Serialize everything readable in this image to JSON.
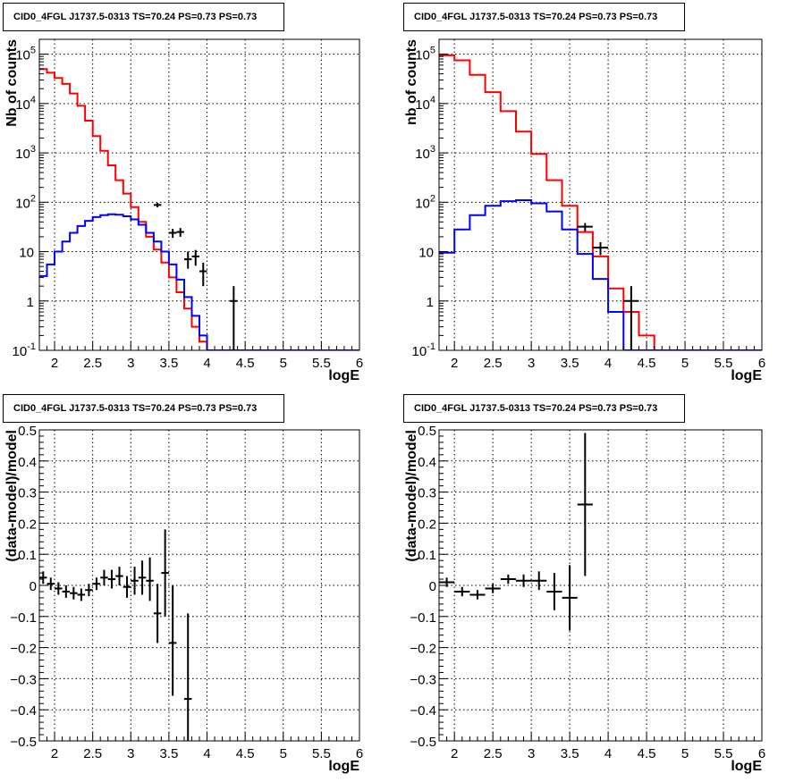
{
  "colors": {
    "data": "#000000",
    "model_total": "#ff0000",
    "model_source": "#0000ff",
    "grid": "#000000"
  },
  "chart_data": [
    {
      "type": "line",
      "scale": "log",
      "title": "CID0_4FGL J1737.5-0313 TS=70.24 PS=0.73 PS=0.73",
      "xlabel": "logE",
      "ylabel": "Nb of counts",
      "xlim": [
        1.8,
        6.0
      ],
      "ylim": [
        0.1,
        200000
      ],
      "xticks": [
        "2",
        "2.5",
        "3",
        "3.5",
        "4",
        "4.5",
        "5",
        "5.5",
        "6"
      ],
      "yticks": [
        "10^-1",
        "1",
        "10",
        "10^2",
        "10^3",
        "10^4",
        "10^5"
      ],
      "grid": true,
      "bin_edges": [
        1.8,
        1.9,
        2.0,
        2.1,
        2.2,
        2.3,
        2.4,
        2.5,
        2.6,
        2.7,
        2.8,
        2.9,
        3.0,
        3.1,
        3.2,
        3.3,
        3.4,
        3.5,
        3.6,
        3.7,
        3.8,
        3.9,
        4.0,
        4.1,
        4.2,
        4.3,
        4.4,
        4.5,
        4.6,
        4.7,
        4.8,
        4.9,
        5.0,
        5.1,
        5.2,
        5.3,
        5.4,
        5.5,
        5.6,
        5.7,
        5.8,
        5.9,
        6.0
      ],
      "series": [
        {
          "role": "model_total",
          "values": [
            50000,
            42000,
            33000,
            25000,
            16000,
            9000,
            4500,
            2200,
            1100,
            560,
            280,
            150,
            80,
            40,
            20,
            11,
            6,
            3,
            1.5,
            0.7,
            0.3,
            0.15,
            0.1,
            0.1,
            0.1,
            0.1,
            0.1,
            0.1,
            0.1,
            0.1,
            0.1,
            0.1,
            0.1,
            0.1,
            0.1,
            0.1,
            0.1,
            0.1,
            0.1,
            0.1,
            0.1,
            0.1
          ]
        },
        {
          "role": "model_source",
          "values": [
            3.2,
            5.5,
            10,
            16,
            24,
            33,
            42,
            50,
            55,
            57,
            56,
            52,
            45,
            35,
            24,
            16,
            10,
            5.5,
            2.7,
            1.2,
            0.5,
            0.2,
            0.1,
            0.1,
            0.1,
            0.1,
            0.1,
            0.1,
            0.1,
            0.1,
            0.1,
            0.1,
            0.1,
            0.1,
            0.1,
            0.1,
            0.1,
            0.1,
            0.1,
            0.1,
            0.1,
            0.1
          ]
        },
        {
          "role": "data",
          "points": [
            {
              "x": 3.35,
              "y": 88,
              "xerr": 0.05,
              "ylo": 79,
              "yhi": 97
            },
            {
              "x": 3.55,
              "y": 24,
              "xerr": 0.05,
              "ylo": 19,
              "yhi": 29
            },
            {
              "x": 3.65,
              "y": 25,
              "xerr": 0.05,
              "ylo": 20,
              "yhi": 30
            },
            {
              "x": 3.75,
              "y": 7,
              "xerr": 0.05,
              "ylo": 4.5,
              "yhi": 10
            },
            {
              "x": 3.85,
              "y": 8,
              "xerr": 0.05,
              "ylo": 5.2,
              "yhi": 10.8
            },
            {
              "x": 3.95,
              "y": 4,
              "xerr": 0.05,
              "ylo": 2,
              "yhi": 6
            },
            {
              "x": 4.35,
              "y": 1,
              "xerr": 0.05,
              "ylo": 0.1,
              "yhi": 2
            }
          ]
        }
      ]
    },
    {
      "type": "line",
      "scale": "log",
      "title": "CID0_4FGL J1737.5-0313 TS=70.24 PS=0.73 PS=0.73",
      "xlabel": "logE",
      "ylabel": "nb of counts",
      "xlim": [
        1.8,
        6.0
      ],
      "ylim": [
        0.1,
        200000
      ],
      "xticks": [
        "2",
        "2.5",
        "3",
        "3.5",
        "4",
        "4.5",
        "5",
        "5.5",
        "6"
      ],
      "yticks": [
        "10^-1",
        "1",
        "10",
        "10^2",
        "10^3",
        "10^4",
        "10^5"
      ],
      "grid": true,
      "bin_edges": [
        1.8,
        2.0,
        2.2,
        2.4,
        2.6,
        2.8,
        3.0,
        3.2,
        3.4,
        3.6,
        3.8,
        4.0,
        4.2,
        4.4,
        4.6,
        4.8,
        5.0,
        5.2,
        5.4,
        5.6,
        5.8,
        6.0
      ],
      "series": [
        {
          "role": "model_total",
          "values": [
            95000,
            75000,
            38000,
            17000,
            7000,
            2700,
            950,
            280,
            85,
            25,
            8,
            1.8,
            0.6,
            0.2,
            0.1,
            0.1,
            0.1,
            0.1,
            0.1,
            0.1,
            0.1
          ]
        },
        {
          "role": "model_source",
          "values": [
            9.5,
            28,
            55,
            85,
            105,
            110,
            95,
            65,
            28,
            9,
            2.8,
            0.6,
            0.1,
            0.1,
            0.1,
            0.1,
            0.1,
            0.1,
            0.1,
            0.1,
            0.1
          ]
        },
        {
          "role": "data",
          "points": [
            {
              "x": 3.7,
              "y": 32,
              "xerr": 0.1,
              "ylo": 26,
              "yhi": 38
            },
            {
              "x": 3.9,
              "y": 12,
              "xerr": 0.1,
              "ylo": 8.5,
              "yhi": 15.5
            },
            {
              "x": 4.3,
              "y": 1,
              "xerr": 0.1,
              "ylo": 0.1,
              "yhi": 2
            }
          ]
        }
      ]
    },
    {
      "type": "scatter",
      "scale": "linear",
      "title": "CID0_4FGL J1737.5-0313 TS=70.24 PS=0.73 PS=0.73",
      "xlabel": "logE",
      "ylabel": "(data-model)/model",
      "xlim": [
        1.8,
        6.0
      ],
      "ylim": [
        -0.5,
        0.5
      ],
      "xticks": [
        "2",
        "2.5",
        "3",
        "3.5",
        "4",
        "4.5",
        "5",
        "5.5",
        "6"
      ],
      "yticks": [
        "-0.5",
        "-0.4",
        "-0.3",
        "-0.2",
        "-0.1",
        "0",
        "0.1",
        "0.2",
        "0.3",
        "0.4",
        "0.5"
      ],
      "grid": true,
      "series": [
        {
          "role": "data",
          "points": [
            {
              "x": 1.85,
              "y": 0.025,
              "xerr": 0.05,
              "ylo": 0.005,
              "yhi": 0.045
            },
            {
              "x": 1.95,
              "y": 0.005,
              "xerr": 0.05,
              "ylo": -0.015,
              "yhi": 0.025
            },
            {
              "x": 2.05,
              "y": -0.01,
              "xerr": 0.05,
              "ylo": -0.03,
              "yhi": 0.01
            },
            {
              "x": 2.15,
              "y": -0.02,
              "xerr": 0.05,
              "ylo": -0.04,
              "yhi": 0.0
            },
            {
              "x": 2.25,
              "y": -0.025,
              "xerr": 0.05,
              "ylo": -0.045,
              "yhi": -0.005
            },
            {
              "x": 2.35,
              "y": -0.03,
              "xerr": 0.05,
              "ylo": -0.05,
              "yhi": -0.01
            },
            {
              "x": 2.45,
              "y": -0.015,
              "xerr": 0.05,
              "ylo": -0.035,
              "yhi": 0.005
            },
            {
              "x": 2.55,
              "y": 0.005,
              "xerr": 0.05,
              "ylo": -0.015,
              "yhi": 0.025
            },
            {
              "x": 2.65,
              "y": 0.025,
              "xerr": 0.05,
              "ylo": 0.0,
              "yhi": 0.05
            },
            {
              "x": 2.75,
              "y": 0.02,
              "xerr": 0.05,
              "ylo": -0.01,
              "yhi": 0.05
            },
            {
              "x": 2.85,
              "y": 0.03,
              "xerr": 0.05,
              "ylo": 0.0,
              "yhi": 0.06
            },
            {
              "x": 2.95,
              "y": -0.005,
              "xerr": 0.05,
              "ylo": -0.04,
              "yhi": 0.03
            },
            {
              "x": 3.05,
              "y": 0.015,
              "xerr": 0.05,
              "ylo": -0.03,
              "yhi": 0.06
            },
            {
              "x": 3.15,
              "y": 0.025,
              "xerr": 0.05,
              "ylo": -0.03,
              "yhi": 0.08
            },
            {
              "x": 3.25,
              "y": 0.015,
              "xerr": 0.05,
              "ylo": -0.05,
              "yhi": 0.09
            },
            {
              "x": 3.35,
              "y": -0.09,
              "xerr": 0.05,
              "ylo": -0.185,
              "yhi": 0.005
            },
            {
              "x": 3.45,
              "y": 0.04,
              "xerr": 0.05,
              "ylo": -0.1,
              "yhi": 0.18
            },
            {
              "x": 3.55,
              "y": -0.185,
              "xerr": 0.05,
              "ylo": -0.355,
              "yhi": 0.0
            },
            {
              "x": 3.75,
              "y": -0.365,
              "xerr": 0.05,
              "ylo": -0.5,
              "yhi": -0.09
            }
          ]
        }
      ]
    },
    {
      "type": "scatter",
      "scale": "linear",
      "title": "CID0_4FGL J1737.5-0313 TS=70.24 PS=0.73 PS=0.73",
      "xlabel": "logE",
      "ylabel": "(data-model)/model",
      "xlim": [
        1.8,
        6.0
      ],
      "ylim": [
        -0.5,
        0.5
      ],
      "xticks": [
        "2",
        "2.5",
        "3",
        "3.5",
        "4",
        "4.5",
        "5",
        "5.5",
        "6"
      ],
      "yticks": [
        "-0.5",
        "-0.4",
        "-0.3",
        "-0.2",
        "-0.1",
        "0",
        "0.1",
        "0.2",
        "0.3",
        "0.4",
        "0.5"
      ],
      "grid": true,
      "series": [
        {
          "role": "data",
          "points": [
            {
              "x": 1.9,
              "y": 0.01,
              "xerr": 0.1,
              "ylo": -0.005,
              "yhi": 0.025
            },
            {
              "x": 2.1,
              "y": -0.02,
              "xerr": 0.1,
              "ylo": -0.035,
              "yhi": -0.005
            },
            {
              "x": 2.3,
              "y": -0.03,
              "xerr": 0.1,
              "ylo": -0.045,
              "yhi": -0.015
            },
            {
              "x": 2.5,
              "y": -0.01,
              "xerr": 0.1,
              "ylo": -0.025,
              "yhi": 0.005
            },
            {
              "x": 2.7,
              "y": 0.02,
              "xerr": 0.1,
              "ylo": 0.005,
              "yhi": 0.035
            },
            {
              "x": 2.9,
              "y": 0.015,
              "xerr": 0.1,
              "ylo": -0.005,
              "yhi": 0.035
            },
            {
              "x": 3.1,
              "y": 0.015,
              "xerr": 0.1,
              "ylo": -0.015,
              "yhi": 0.045
            },
            {
              "x": 3.3,
              "y": -0.02,
              "xerr": 0.1,
              "ylo": -0.08,
              "yhi": 0.04
            },
            {
              "x": 3.5,
              "y": -0.04,
              "xerr": 0.1,
              "ylo": -0.145,
              "yhi": 0.065
            },
            {
              "x": 3.7,
              "y": 0.26,
              "xerr": 0.1,
              "ylo": 0.03,
              "yhi": 0.49
            }
          ]
        }
      ]
    }
  ]
}
